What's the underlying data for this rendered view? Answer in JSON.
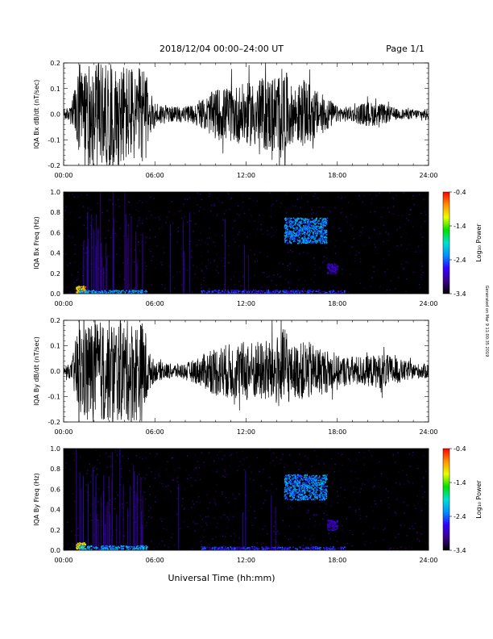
{
  "header": {
    "date_range": "2018/12/04   00:00–24:00 UT",
    "page": "Page 1/1"
  },
  "xlabel": "Universal Time (hh:mm)",
  "side_note": "Generated on Mar 9 11:00:35 2019",
  "colorbar": {
    "label": "Log₁₀ Power",
    "ticks": [
      "-0.4",
      "-1.4",
      "-2.4",
      "-3.4"
    ],
    "min": -3.4,
    "max": -0.4,
    "colors": [
      "#000000",
      "#3a0088",
      "#3400ff",
      "#0090ff",
      "#00e0d0",
      "#00e000",
      "#e8ff00",
      "#ff9000",
      "#ff0000"
    ]
  },
  "chart_data": [
    {
      "type": "line",
      "panel": "bx-waveform",
      "ylabel": "IQA Bx dB/dt (nT/sec)",
      "xlim": [
        0,
        24
      ],
      "ylim": [
        -0.2,
        0.2
      ],
      "xticks": [
        "00:00",
        "06:00",
        "12:00",
        "18:00",
        "24:00"
      ],
      "yticks": [
        "0.2",
        "0.1",
        "0.0",
        "-0.1",
        "-0.2"
      ],
      "envelope_hours": [
        0,
        0.5,
        1.0,
        1.2,
        2.0,
        3.0,
        4.0,
        5.0,
        5.3,
        5.6,
        6.0,
        7.0,
        8.0,
        9.0,
        10.0,
        11.0,
        12.0,
        13.0,
        14.0,
        14.5,
        15.0,
        16.0,
        16.7,
        17.5,
        18.0,
        19.0,
        20.0,
        21.0,
        22.0,
        23.0,
        24.0
      ],
      "envelope_amplitude": [
        0.02,
        0.03,
        0.2,
        0.2,
        0.2,
        0.2,
        0.2,
        0.18,
        0.2,
        0.1,
        0.05,
        0.03,
        0.03,
        0.05,
        0.1,
        0.11,
        0.12,
        0.14,
        0.16,
        0.19,
        0.11,
        0.13,
        0.09,
        0.06,
        0.03,
        0.03,
        0.05,
        0.04,
        0.02,
        0.02,
        0.02
      ]
    },
    {
      "type": "heatmap",
      "panel": "bx-spectrogram",
      "ylabel": "IQA Bx Freq (Hz)",
      "xlim": [
        0,
        24
      ],
      "ylim": [
        0,
        1.0
      ],
      "xticks": [
        "00:00",
        "06:00",
        "12:00",
        "18:00",
        "24:00"
      ],
      "yticks": [
        "1.0",
        "0.8",
        "0.6",
        "0.4",
        "0.2",
        "0.0"
      ],
      "features": [
        {
          "t0": 0.8,
          "t1": 1.4,
          "f0": 0.0,
          "f1": 0.08,
          "level": -0.7
        },
        {
          "t0": 1.0,
          "t1": 5.5,
          "f0": 0.0,
          "f1": 0.04,
          "level": -1.9
        },
        {
          "t0": 9.0,
          "t1": 18.5,
          "f0": 0.0,
          "f1": 0.04,
          "level": -2.3
        },
        {
          "t0": 14.5,
          "t1": 17.3,
          "f0": 0.5,
          "f1": 0.75,
          "level": -2.0
        },
        {
          "t0": 17.3,
          "t1": 18.0,
          "f0": 0.2,
          "f1": 0.3,
          "level": -2.6
        }
      ]
    },
    {
      "type": "line",
      "panel": "by-waveform",
      "ylabel": "IQA By dB/dt (nT/sec)",
      "xlim": [
        0,
        24
      ],
      "ylim": [
        -0.2,
        0.2
      ],
      "xticks": [
        "00:00",
        "06:00",
        "12:00",
        "18:00",
        "24:00"
      ],
      "yticks": [
        "0.2",
        "0.1",
        "0.0",
        "-0.1",
        "-0.2"
      ],
      "envelope_hours": [
        0,
        0.5,
        1.0,
        1.2,
        2.0,
        3.0,
        4.0,
        5.0,
        5.3,
        5.6,
        6.0,
        7.0,
        8.0,
        9.0,
        10.0,
        11.0,
        12.0,
        13.0,
        14.0,
        14.5,
        15.0,
        16.0,
        16.7,
        17.5,
        18.0,
        19.0,
        20.0,
        21.0,
        22.0,
        23.0,
        24.0
      ],
      "envelope_amplitude": [
        0.02,
        0.03,
        0.2,
        0.2,
        0.2,
        0.2,
        0.2,
        0.2,
        0.2,
        0.08,
        0.04,
        0.03,
        0.03,
        0.06,
        0.1,
        0.11,
        0.12,
        0.12,
        0.14,
        0.17,
        0.1,
        0.12,
        0.1,
        0.08,
        0.06,
        0.06,
        0.06,
        0.07,
        0.05,
        0.03,
        0.03
      ]
    },
    {
      "type": "heatmap",
      "panel": "by-spectrogram",
      "ylabel": "IQA By Freq (Hz)",
      "xlim": [
        0,
        24
      ],
      "ylim": [
        0,
        1.0
      ],
      "xticks": [
        "00:00",
        "06:00",
        "12:00",
        "18:00",
        "24:00"
      ],
      "yticks": [
        "1.0",
        "0.8",
        "0.6",
        "0.4",
        "0.2",
        "0.0"
      ],
      "features": [
        {
          "t0": 0.8,
          "t1": 1.4,
          "f0": 0.0,
          "f1": 0.08,
          "level": -0.7
        },
        {
          "t0": 1.0,
          "t1": 5.5,
          "f0": 0.0,
          "f1": 0.05,
          "level": -1.9
        },
        {
          "t0": 9.0,
          "t1": 18.5,
          "f0": 0.0,
          "f1": 0.04,
          "level": -2.3
        },
        {
          "t0": 14.5,
          "t1": 17.3,
          "f0": 0.5,
          "f1": 0.75,
          "level": -2.0
        },
        {
          "t0": 17.3,
          "t1": 18.0,
          "f0": 0.2,
          "f1": 0.3,
          "level": -2.6
        }
      ]
    }
  ]
}
